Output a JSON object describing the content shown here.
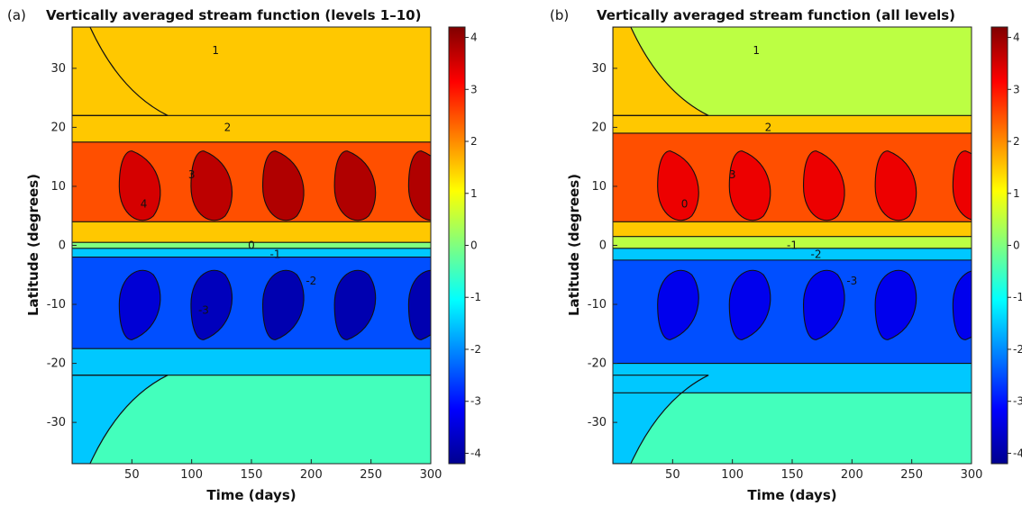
{
  "chart_data": [
    {
      "type": "heatmap",
      "panel_label": "(a)",
      "title": "Vertically averaged stream function (levels 1–10)",
      "xlabel": "Time (days)",
      "ylabel": "Latitude (degrees)",
      "xlim": [
        0,
        300
      ],
      "ylim": [
        -37,
        37
      ],
      "xticks": [
        "50",
        "100",
        "150",
        "200",
        "250",
        "300"
      ],
      "yticks": [
        "-30",
        "-20",
        "-10",
        "0",
        "10",
        "20",
        "30"
      ],
      "colorbar_ticks": [
        "4",
        "3",
        "2",
        "1",
        "0",
        "-1",
        "-2",
        "-3",
        "-4"
      ],
      "colorbar_range": [
        -4.2,
        4.2
      ],
      "colormap": "jet",
      "contour_levels": [
        -4,
        -3,
        -2,
        -1,
        0,
        1,
        2,
        3,
        4
      ],
      "contour_labels": [
        "1",
        "2",
        "3",
        "4",
        "0",
        "-1",
        "-2",
        "-3"
      ],
      "pulse_days": [
        50,
        110,
        170,
        230,
        292
      ],
      "bands": [
        {
          "range": [
            22,
            37
          ],
          "value": 1.5
        },
        {
          "range": [
            17.5,
            22
          ],
          "value": 1.5
        },
        {
          "range": [
            4,
            17.5
          ],
          "value": 2.5
        },
        {
          "range": [
            0.5,
            4
          ],
          "value": 1.5
        },
        {
          "range": [
            -0.5,
            0.5
          ],
          "value": 0
        },
        {
          "range": [
            -2,
            -0.5
          ],
          "value": -1.5
        },
        {
          "range": [
            -17.5,
            -2
          ],
          "value": -2.5
        },
        {
          "range": [
            -22,
            -17.5
          ],
          "value": -1.5
        },
        {
          "range": [
            -37,
            -22
          ],
          "value": -0.5
        }
      ],
      "cores": [
        {
          "day": 50,
          "value": 3.5
        },
        {
          "day": 110,
          "value": 3.7
        },
        {
          "day": 170,
          "value": 3.8
        },
        {
          "day": 230,
          "value": 3.8
        },
        {
          "day": 292,
          "value": 3.8
        }
      ]
    },
    {
      "type": "heatmap",
      "panel_label": "(b)",
      "title": "Vertically averaged stream function (all levels)",
      "xlabel": "Time (days)",
      "ylabel": "Latitude (degrees)",
      "xlim": [
        0,
        300
      ],
      "ylim": [
        -37,
        37
      ],
      "xticks": [
        "50",
        "100",
        "150",
        "200",
        "250",
        "300"
      ],
      "yticks": [
        "-30",
        "-20",
        "-10",
        "0",
        "10",
        "20",
        "30"
      ],
      "colorbar_ticks": [
        "4",
        "3",
        "2",
        "1",
        "0",
        "-1",
        "-2",
        "-3",
        "-4"
      ],
      "colorbar_range": [
        -4.2,
        4.2
      ],
      "colormap": "jet",
      "contour_levels": [
        -4,
        -3,
        -2,
        -1,
        0,
        1,
        2,
        3,
        4
      ],
      "contour_labels": [
        "1",
        "2",
        "3",
        "0",
        "-1",
        "-2",
        "-3"
      ],
      "pulse_days": [
        50,
        110,
        170,
        230,
        295
      ],
      "bands": [
        {
          "range": [
            22,
            37
          ],
          "value": 0.5
        },
        {
          "range": [
            19,
            22
          ],
          "value": 1.5
        },
        {
          "range": [
            4,
            19
          ],
          "value": 2.5
        },
        {
          "range": [
            1.5,
            4
          ],
          "value": 1.5
        },
        {
          "range": [
            -0.5,
            1.5
          ],
          "value": 0.5
        },
        {
          "range": [
            -2.5,
            -0.5
          ],
          "value": -1.5
        },
        {
          "range": [
            -20,
            -2.5
          ],
          "value": -2.5
        },
        {
          "range": [
            -25,
            -20
          ],
          "value": -1.5
        },
        {
          "range": [
            -37,
            -25
          ],
          "value": -0.5
        }
      ],
      "cores": [
        {
          "day": 48,
          "value": 3.3
        },
        {
          "day": 108,
          "value": 3.3
        },
        {
          "day": 170,
          "value": 3.3
        },
        {
          "day": 230,
          "value": 3.3
        },
        {
          "day": 295,
          "value": 3.3
        }
      ]
    }
  ]
}
